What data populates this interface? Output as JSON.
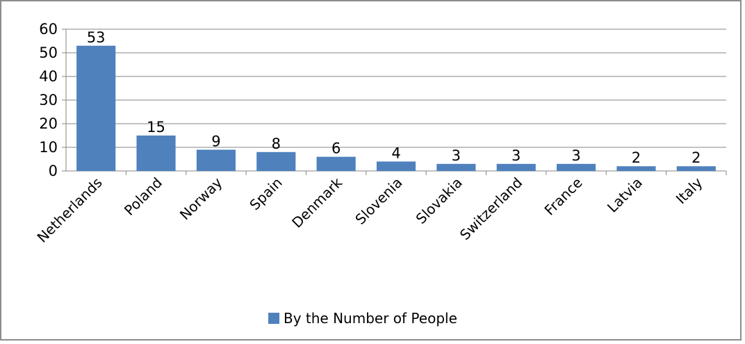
{
  "chart_data": {
    "type": "bar",
    "categories": [
      "Netherlands",
      "Poland",
      "Norway",
      "Spain",
      "Denmark",
      "Slovenia",
      "Slovakia",
      "Switzerland",
      "France",
      "Latvia",
      "Italy"
    ],
    "series": [
      {
        "name": "By the Number of People",
        "values": [
          53,
          15,
          9,
          8,
          6,
          4,
          3,
          3,
          3,
          2,
          2
        ],
        "color": "#4f81bd"
      }
    ],
    "yticks": [
      0,
      10,
      20,
      30,
      40,
      50,
      60
    ],
    "ylim": [
      0,
      60
    ],
    "grid": true,
    "legend_position": "bottom",
    "data_labels": true
  }
}
